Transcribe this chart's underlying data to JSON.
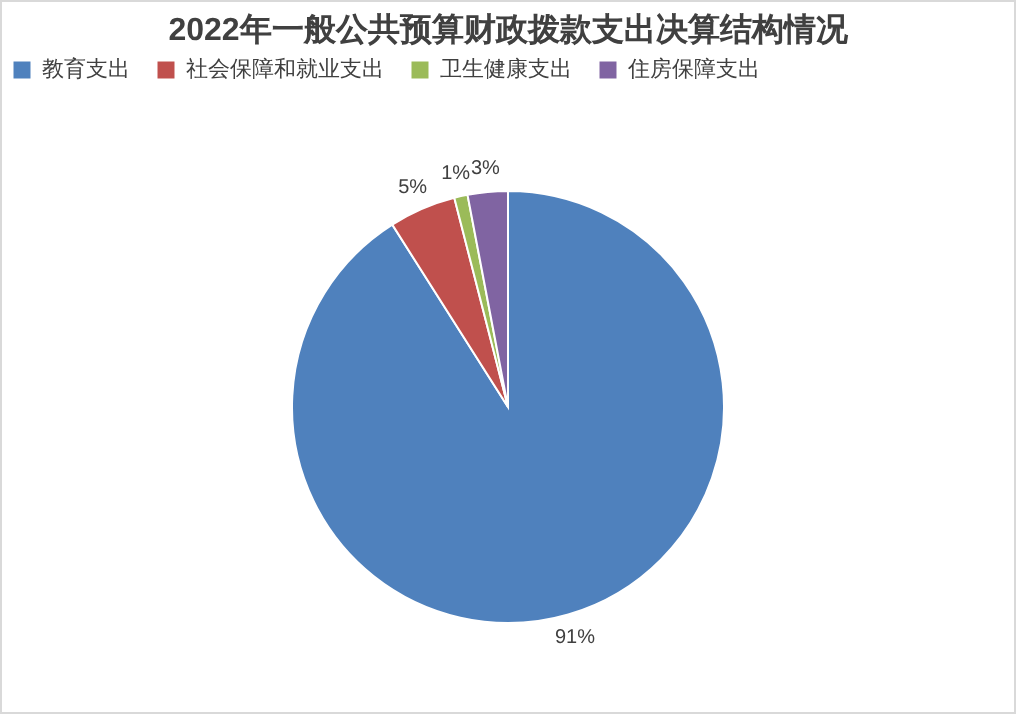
{
  "chart_data": {
    "type": "pie",
    "title": "2022年一般公共预算财政拨款支出决算结构情况",
    "categories": [
      "教育支出",
      "社会保障和就业支出",
      "卫生健康支出",
      "住房保障支出"
    ],
    "values": [
      91,
      5,
      1,
      3
    ],
    "colors": [
      "#4f81bd",
      "#c0504d",
      "#9bbb59",
      "#8064a2"
    ],
    "value_labels": [
      "91%",
      "5%",
      "1%",
      "3%"
    ],
    "legend": "top"
  }
}
